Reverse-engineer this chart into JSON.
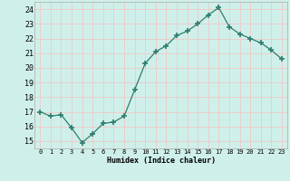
{
  "x": [
    0,
    1,
    2,
    3,
    4,
    5,
    6,
    7,
    8,
    9,
    10,
    11,
    12,
    13,
    14,
    15,
    16,
    17,
    18,
    19,
    20,
    21,
    22,
    23
  ],
  "y": [
    17.0,
    16.7,
    16.8,
    15.9,
    14.9,
    15.5,
    16.2,
    16.3,
    16.7,
    18.5,
    20.3,
    21.1,
    21.5,
    22.2,
    22.5,
    23.0,
    23.6,
    24.1,
    22.8,
    22.3,
    22.0,
    21.7,
    21.2,
    20.6
  ],
  "xlabel": "Humidex (Indice chaleur)",
  "ylabel_ticks": [
    15,
    16,
    17,
    18,
    19,
    20,
    21,
    22,
    23,
    24
  ],
  "ylim": [
    14.5,
    24.5
  ],
  "xlim": [
    -0.5,
    23.5
  ],
  "line_color": "#2d7d6e",
  "marker_color": "#2d7d6e",
  "bg_color": "#cff0ea",
  "grid_color": "#f0c8c8",
  "spine_color": "#aaaaaa"
}
